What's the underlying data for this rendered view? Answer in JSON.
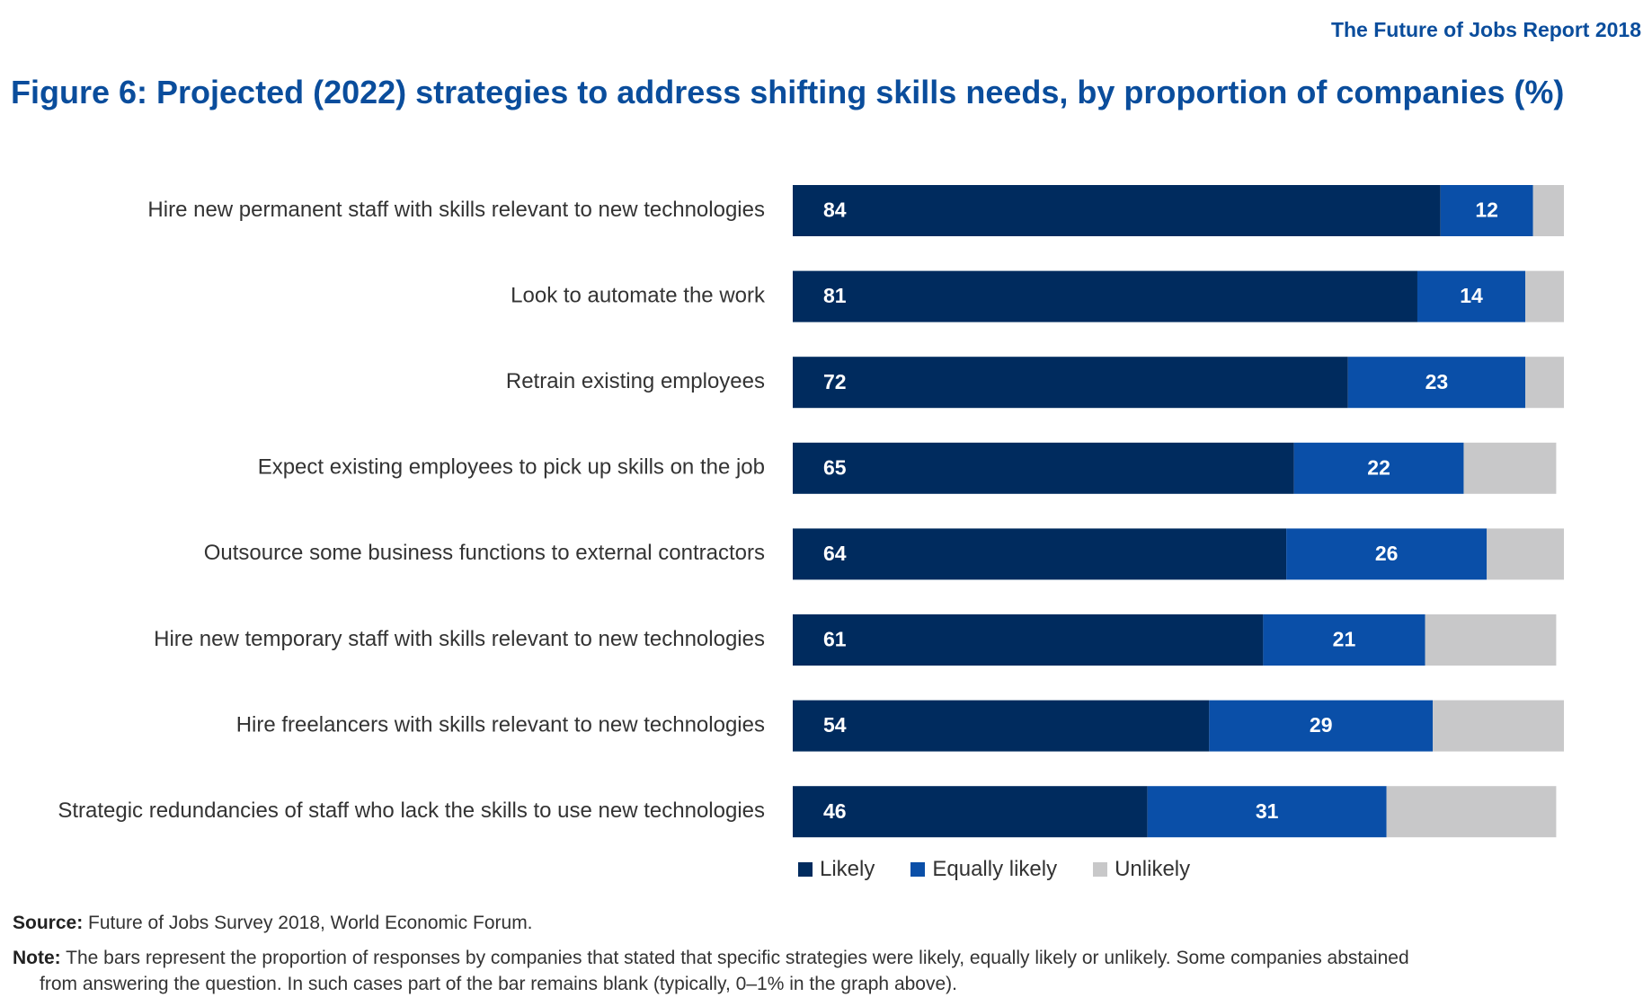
{
  "header": {
    "report": "The Future of Jobs Report 2018",
    "title": "Figure 6: Projected (2022) strategies to address shifting skills needs, by proportion of companies (%)"
  },
  "chart_data": {
    "type": "bar",
    "orientation": "horizontal",
    "stacked": true,
    "categories": [
      "Hire new permanent staff with skills relevant to new technologies",
      "Look to automate the work",
      "Retrain existing employees",
      "Expect existing employees to pick up skills on the job",
      "Outsource some business functions to external contractors",
      "Hire new temporary staff with skills relevant to new technologies",
      "Hire freelancers with skills relevant to new technologies",
      "Strategic redundancies of staff who lack the skills to use new technologies"
    ],
    "series": [
      {
        "name": "Likely",
        "color": "#002b5e",
        "values": [
          84,
          81,
          72,
          65,
          64,
          61,
          54,
          46
        ]
      },
      {
        "name": "Equally likely",
        "color": "#0a4fa8",
        "values": [
          12,
          14,
          23,
          22,
          26,
          21,
          29,
          31
        ]
      },
      {
        "name": "Unlikely",
        "color": "#c8c8c9",
        "values": [
          4,
          5,
          5,
          12,
          10,
          17,
          17,
          22
        ]
      }
    ],
    "xlim": [
      0,
      100
    ],
    "grid": false,
    "legend_position": "bottom"
  },
  "footer": {
    "source_label": "Source:",
    "source_text": "Future of Jobs Survey 2018, World Economic Forum.",
    "note_label": "Note:",
    "note_text_1": "The bars represent the proportion of responses by companies that stated that specific strategies were likely, equally likely or unlikely. Some companies abstained",
    "note_text_2": "from answering the question. In such cases part of the bar remains blank (typically, 0–1% in the graph above)."
  }
}
